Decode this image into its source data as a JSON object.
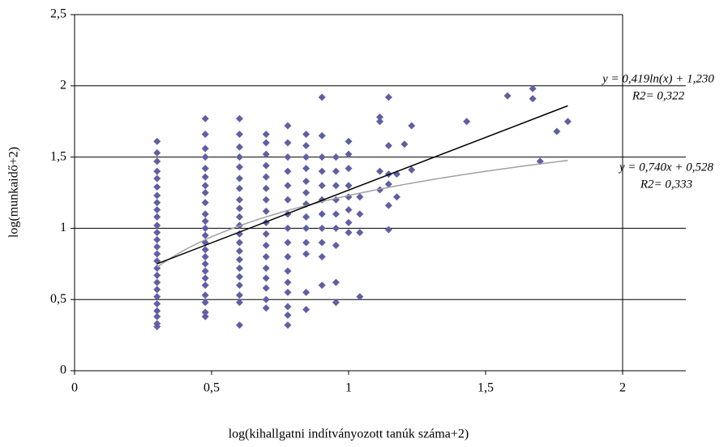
{
  "chart_data": {
    "type": "scatter",
    "xlabel": "log(kihallgatni indítványozott tanúk száma+2)",
    "ylabel": "log(munkaidő+2)",
    "xlim": [
      0,
      2
    ],
    "ylim": [
      0,
      2.5
    ],
    "xticks": [
      0,
      {
        "value": 0.5,
        "label": "0,5"
      },
      1,
      {
        "value": 1.5,
        "label": "1,5"
      },
      2
    ],
    "yticks": [
      0,
      {
        "value": 0.5,
        "label": "0,5"
      },
      1,
      {
        "value": 1.5,
        "label": "1,5"
      },
      2,
      {
        "value": 2.5,
        "label": "2,5"
      }
    ],
    "grid": true,
    "color": "#5f5fa3",
    "x": [
      0.301,
      0.301,
      0.301,
      0.301,
      0.301,
      0.301,
      0.301,
      0.301,
      0.301,
      0.301,
      0.301,
      0.301,
      0.301,
      0.301,
      0.301,
      0.301,
      0.301,
      0.301,
      0.301,
      0.301,
      0.301,
      0.301,
      0.301,
      0.301,
      0.301,
      0.301,
      0.477,
      0.477,
      0.477,
      0.477,
      0.477,
      0.477,
      0.477,
      0.477,
      0.477,
      0.477,
      0.477,
      0.477,
      0.477,
      0.477,
      0.477,
      0.477,
      0.477,
      0.477,
      0.477,
      0.477,
      0.477,
      0.477,
      0.477,
      0.477,
      0.602,
      0.602,
      0.602,
      0.602,
      0.602,
      0.602,
      0.602,
      0.602,
      0.602,
      0.602,
      0.602,
      0.602,
      0.602,
      0.602,
      0.602,
      0.602,
      0.602,
      0.602,
      0.602,
      0.602,
      0.602,
      0.699,
      0.699,
      0.699,
      0.699,
      0.699,
      0.699,
      0.699,
      0.699,
      0.699,
      0.699,
      0.699,
      0.699,
      0.699,
      0.699,
      0.699,
      0.699,
      0.699,
      0.778,
      0.778,
      0.778,
      0.778,
      0.778,
      0.778,
      0.778,
      0.778,
      0.778,
      0.778,
      0.778,
      0.778,
      0.778,
      0.778,
      0.778,
      0.778,
      0.845,
      0.845,
      0.845,
      0.845,
      0.845,
      0.845,
      0.845,
      0.845,
      0.845,
      0.845,
      0.845,
      0.845,
      0.845,
      0.903,
      0.903,
      0.903,
      0.903,
      0.903,
      0.903,
      0.903,
      0.903,
      0.903,
      0.903,
      0.903,
      0.954,
      0.954,
      0.954,
      0.954,
      0.954,
      0.954,
      0.954,
      0.954,
      0.954,
      1,
      1,
      1,
      1,
      1,
      1,
      1,
      1,
      1.041,
      1.041,
      1.041,
      1.041,
      1.114,
      1.114,
      1.114,
      1.114,
      1.146,
      1.146,
      1.146,
      1.146,
      1.146,
      1.146,
      1.176,
      1.176,
      1.204,
      1.23,
      1.23,
      1.431,
      1.58,
      1.672,
      1.672,
      1.699,
      1.76,
      1.8
    ],
    "values": [
      0.31,
      0.33,
      0.38,
      0.42,
      0.47,
      0.52,
      0.57,
      0.62,
      0.67,
      0.72,
      0.77,
      0.82,
      0.87,
      0.92,
      0.97,
      1.02,
      1.08,
      1.13,
      1.18,
      1.23,
      1.29,
      1.35,
      1.4,
      1.47,
      1.53,
      1.61,
      0.38,
      0.41,
      0.48,
      0.53,
      0.6,
      0.65,
      0.7,
      0.75,
      0.8,
      0.85,
      0.9,
      0.95,
      1,
      1.05,
      1.1,
      1.18,
      1.25,
      1.3,
      1.36,
      1.42,
      1.5,
      1.56,
      1.66,
      1.77,
      0.32,
      0.48,
      0.53,
      0.6,
      0.66,
      0.72,
      0.78,
      0.84,
      0.9,
      0.96,
      1.02,
      1.08,
      1.14,
      1.2,
      1.28,
      1.35,
      1.43,
      1.5,
      1.57,
      1.66,
      1.77,
      0.44,
      0.5,
      0.58,
      0.65,
      0.72,
      0.8,
      0.88,
      0.96,
      1.04,
      1.12,
      1.2,
      1.28,
      1.36,
      1.44,
      1.52,
      1.6,
      1.66,
      0.32,
      0.39,
      0.45,
      0.55,
      0.62,
      0.7,
      0.8,
      0.9,
      1,
      1.1,
      1.2,
      1.3,
      1.4,
      1.5,
      1.6,
      1.72,
      0.43,
      0.55,
      0.82,
      0.9,
      1,
      1.08,
      1.17,
      1.25,
      1.33,
      1.42,
      1.5,
      1.58,
      1.66,
      0.6,
      0.8,
      0.9,
      1,
      1.1,
      1.2,
      1.3,
      1.4,
      1.5,
      1.65,
      1.92,
      0.48,
      0.62,
      0.88,
      1,
      1.1,
      1.2,
      1.3,
      1.4,
      1.5,
      0.97,
      1.04,
      1.13,
      1.22,
      1.3,
      1.42,
      1.52,
      1.61,
      0.52,
      0.97,
      1.1,
      1.22,
      1.27,
      1.4,
      1.75,
      1.78,
      0.99,
      1.16,
      1.31,
      1.38,
      1.58,
      1.92,
      1.22,
      1.38,
      1.59,
      1.41,
      1.72,
      1.75,
      1.93,
      1.91,
      1.98,
      1.47,
      1.68,
      1.75
    ],
    "trendlines": [
      {
        "kind": "log",
        "coef": 0.419,
        "intercept": 1.23,
        "color": "#a0a0a0"
      },
      {
        "kind": "linear",
        "coef": 0.74,
        "intercept": 0.528,
        "color": "#000000"
      }
    ],
    "annotations": [
      "y = 0,419ln(x) + 1,230",
      "R2= 0,322",
      "y = 0,740x + 0,528",
      "R2= 0,333"
    ]
  }
}
